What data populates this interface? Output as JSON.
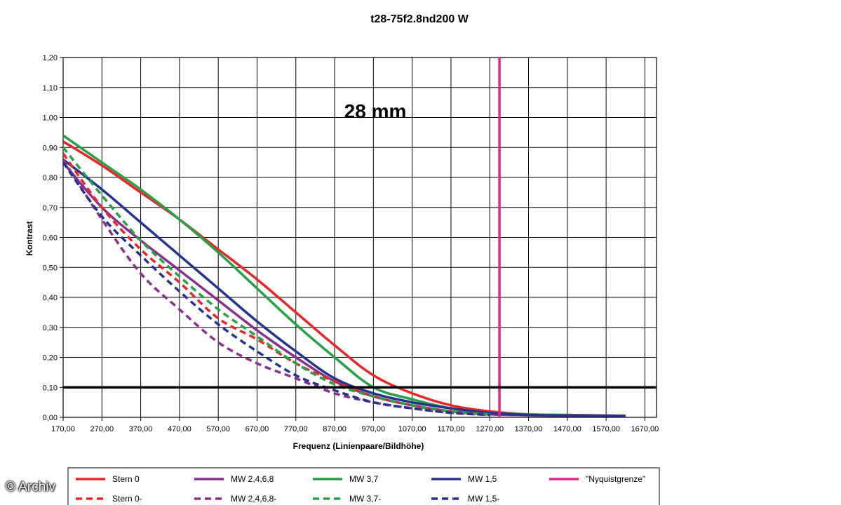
{
  "watermark": "© Archiv",
  "chart_data": {
    "type": "line",
    "title": "t28-75f2.8nd200 W",
    "annotation": "28 mm",
    "xlabel": "Frequenz (Linienpaare/Bildhöhe)",
    "ylabel": "Kontrast",
    "xlim": [
      170,
      1700
    ],
    "ylim": [
      0,
      1.2
    ],
    "x_ticks": [
      "170,00",
      "270,00",
      "370,00",
      "470,00",
      "570,00",
      "670,00",
      "770,00",
      "870,00",
      "970,00",
      "1070,00",
      "1170,00",
      "1270,00",
      "1370,00",
      "1470,00",
      "1570,00",
      "1670,00"
    ],
    "y_ticks": [
      "0,00",
      "0,10",
      "0,20",
      "0,30",
      "0,40",
      "0,50",
      "0,60",
      "0,70",
      "0,80",
      "0,90",
      "1,00",
      "1,10",
      "1,20"
    ],
    "grid": true,
    "legend_position": "bottom",
    "hline": {
      "y": 0.1,
      "color": "#000000"
    },
    "series": [
      {
        "name": "Stern 0",
        "color": "#e8262a",
        "dash": false,
        "x": [
          170,
          270,
          370,
          470,
          570,
          670,
          770,
          870,
          970,
          1070,
          1170,
          1270,
          1370,
          1470,
          1620
        ],
        "y": [
          0.92,
          0.84,
          0.75,
          0.66,
          0.56,
          0.46,
          0.35,
          0.24,
          0.14,
          0.08,
          0.04,
          0.02,
          0.01,
          0.008,
          0.005
        ]
      },
      {
        "name": "MW 2,4,6,8",
        "color": "#8b2f8f",
        "dash": false,
        "x": [
          170,
          270,
          370,
          470,
          570,
          670,
          770,
          870,
          970,
          1070,
          1170,
          1270,
          1370,
          1470,
          1620
        ],
        "y": [
          0.85,
          0.7,
          0.59,
          0.49,
          0.39,
          0.29,
          0.2,
          0.12,
          0.07,
          0.04,
          0.02,
          0.01,
          0.007,
          0.005,
          0.005
        ]
      },
      {
        "name": "MW 3,7",
        "color": "#27a046",
        "dash": false,
        "x": [
          170,
          270,
          370,
          470,
          570,
          670,
          770,
          870,
          970,
          1070,
          1170,
          1270,
          1370,
          1470,
          1620
        ],
        "y": [
          0.94,
          0.85,
          0.76,
          0.66,
          0.55,
          0.43,
          0.31,
          0.2,
          0.1,
          0.06,
          0.03,
          0.015,
          0.01,
          0.007,
          0.005
        ]
      },
      {
        "name": "MW 1,5",
        "color": "#25338f",
        "dash": false,
        "x": [
          170,
          270,
          370,
          470,
          570,
          670,
          770,
          870,
          970,
          1070,
          1170,
          1270,
          1370,
          1470,
          1620
        ],
        "y": [
          0.86,
          0.76,
          0.65,
          0.54,
          0.43,
          0.32,
          0.22,
          0.13,
          0.08,
          0.05,
          0.03,
          0.015,
          0.008,
          0.006,
          0.005
        ]
      },
      {
        "name": "\"Nyquistgrenze\"",
        "color": "#e4238c",
        "dash": false,
        "x": [
          1295,
          1295
        ],
        "y": [
          0,
          1.2
        ]
      },
      {
        "name": "Stern 0-",
        "color": "#e8262a",
        "dash": true,
        "x": [
          170,
          270,
          370,
          470,
          570,
          670,
          770,
          870,
          970,
          1070,
          1170,
          1270
        ],
        "y": [
          0.88,
          0.7,
          0.56,
          0.45,
          0.33,
          0.26,
          0.18,
          0.12,
          0.07,
          0.04,
          0.02,
          0.01
        ]
      },
      {
        "name": "MW 2,4,6,8-",
        "color": "#8b2f8f",
        "dash": true,
        "x": [
          170,
          270,
          370,
          470,
          570,
          670,
          770,
          870,
          970,
          1070,
          1170,
          1270
        ],
        "y": [
          0.86,
          0.66,
          0.48,
          0.36,
          0.25,
          0.18,
          0.13,
          0.08,
          0.05,
          0.03,
          0.015,
          0.008
        ]
      },
      {
        "name": "MW 3,7-",
        "color": "#27a046",
        "dash": true,
        "x": [
          170,
          270,
          370,
          470,
          570,
          670,
          770,
          870,
          970,
          1070,
          1170,
          1270
        ],
        "y": [
          0.9,
          0.74,
          0.59,
          0.47,
          0.36,
          0.27,
          0.18,
          0.11,
          0.07,
          0.04,
          0.02,
          0.01
        ]
      },
      {
        "name": "MW 1,5-",
        "color": "#25338f",
        "dash": true,
        "x": [
          170,
          270,
          370,
          470,
          570,
          670,
          770,
          870,
          970,
          1070,
          1170,
          1270
        ],
        "y": [
          0.85,
          0.67,
          0.54,
          0.42,
          0.31,
          0.22,
          0.14,
          0.09,
          0.05,
          0.03,
          0.015,
          0.008
        ]
      }
    ]
  }
}
